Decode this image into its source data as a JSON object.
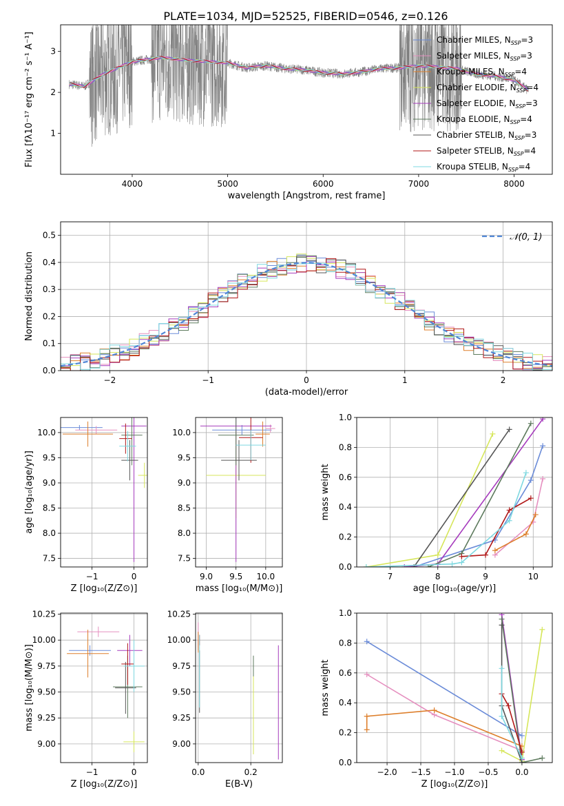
{
  "figure": {
    "title": "PLATE=1034, MJD=52525, FIBERID=0546, z=0.126"
  },
  "palette": [
    "#6a8bd8",
    "#e58fbf",
    "#dd7e2a",
    "#d6e65a",
    "#a63bbd",
    "#5d7a5d",
    "#555555",
    "#b01616",
    "#7dd8e0"
  ],
  "legend_entries": [
    {
      "name": "Chabrier MILES, N",
      "sub": "SSP",
      "eq": "=3",
      "color": "#6a8bd8"
    },
    {
      "name": "Salpeter MILES, N",
      "sub": "SSP",
      "eq": "=3",
      "color": "#e58fbf"
    },
    {
      "name": "Kroupa MILES, N",
      "sub": "SSP",
      "eq": "=4",
      "color": "#dd7e2a"
    },
    {
      "name": "Chabrier ELODIE, N",
      "sub": "SSP",
      "eq": "=4",
      "color": "#d6e65a"
    },
    {
      "name": "Salpeter ELODIE, N",
      "sub": "SSP",
      "eq": "=3",
      "color": "#a63bbd"
    },
    {
      "name": "Kroupa ELODIE, N",
      "sub": "SSP",
      "eq": "=4",
      "color": "#5d7a5d"
    },
    {
      "name": "Chabrier STELIB, N",
      "sub": "SSP",
      "eq": "=3",
      "color": "#555555"
    },
    {
      "name": "Salpeter STELIB, N",
      "sub": "SSP",
      "eq": "=4",
      "color": "#b01616"
    },
    {
      "name": "Kroupa STELIB, N",
      "sub": "SSP",
      "eq": "=4",
      "color": "#7dd8e0"
    }
  ],
  "chart_data": [
    {
      "id": "spectrum",
      "type": "line",
      "xlabel": "wavelength [Angstrom, rest frame]",
      "ylabel": "Flux [fλ10⁻¹⁷ erg cm⁻² s⁻¹ A⁻¹]",
      "xlim": [
        3250,
        8400
      ],
      "ylim": [
        0,
        3.65
      ],
      "xticks": [
        4000,
        5000,
        6000,
        7000,
        8000
      ],
      "yticks": [
        1,
        2,
        3
      ],
      "data_range": [
        3340,
        8150
      ],
      "continuum": {
        "x": [
          3340,
          3500,
          3700,
          4000,
          4300,
          4600,
          5000,
          5200,
          5400,
          5600,
          5800,
          6000,
          6200,
          6400,
          6600,
          6800,
          7000,
          7200,
          7400,
          7600,
          7800,
          8000,
          8150
        ],
        "y": [
          2.2,
          2.15,
          2.45,
          2.75,
          2.85,
          2.78,
          2.72,
          2.6,
          2.65,
          2.58,
          2.55,
          2.48,
          2.45,
          2.5,
          2.58,
          2.6,
          2.65,
          2.62,
          2.58,
          2.45,
          2.4,
          2.3,
          2.05
        ]
      },
      "grid": false
    },
    {
      "id": "residuals",
      "type": "step",
      "xlabel": "(data-model)/error",
      "ylabel": "Normed distribution",
      "xlim": [
        -2.5,
        2.5
      ],
      "ylim": [
        0,
        0.55
      ],
      "xticks": [
        -2,
        -1,
        0,
        1,
        2
      ],
      "yticks": [
        0.0,
        0.1,
        0.2,
        0.3,
        0.4,
        0.5
      ],
      "bin_width": 0.1,
      "reference": {
        "name": "𝒩(0, 1)",
        "color": "#4f86d6"
      },
      "grid": true
    },
    {
      "id": "age-vs-z",
      "type": "errorbar",
      "xlabel": "Z [log₁₀(Z/Z⊙)]",
      "ylabel": "age  [log₁₀(age/yr)]",
      "xlim": [
        -1.75,
        0.32
      ],
      "ylim": [
        7.33,
        10.3
      ],
      "xticks": [
        -1,
        0
      ],
      "yticks": [
        7.5,
        8.0,
        8.5,
        9.0,
        9.5,
        10.0
      ],
      "points": [
        {
          "x": -1.3,
          "y": 10.1,
          "xerr": 0.55,
          "yerr": 0.05,
          "c": 0
        },
        {
          "x": -0.9,
          "y": 10.05,
          "xerr": 0.5,
          "yerr": 0.08,
          "c": 1
        },
        {
          "x": -1.1,
          "y": 9.97,
          "xerr": 0.6,
          "yerr": 0.25,
          "c": 2
        },
        {
          "x": 0.25,
          "y": 9.15,
          "xerr": 0.15,
          "yerr": 0.25,
          "c": 3
        },
        {
          "x": 0.0,
          "y": 10.13,
          "xerr": 0.3,
          "yerr": 2.7,
          "c": 4
        },
        {
          "x": -0.05,
          "y": 9.95,
          "xerr": 0.25,
          "yerr": 0.6,
          "c": 5
        },
        {
          "x": -0.1,
          "y": 9.45,
          "xerr": 0.2,
          "yerr": 0.4,
          "c": 6
        },
        {
          "x": -0.2,
          "y": 9.88,
          "xerr": 0.15,
          "yerr": 0.3,
          "c": 7
        },
        {
          "x": -0.15,
          "y": 9.73,
          "xerr": 0.2,
          "yerr": 0.3,
          "c": 8
        }
      ],
      "grid": true
    },
    {
      "id": "age-vs-mass",
      "type": "errorbar",
      "xlabel": "mass [log₁₀(M/M⊙)]",
      "ylabel": "",
      "xlim": [
        8.82,
        10.28
      ],
      "ylim": [
        7.33,
        10.3
      ],
      "xticks": [
        9.0,
        9.5,
        10.0
      ],
      "yticks": [
        7.5,
        8.0,
        8.5,
        9.0,
        9.5,
        10.0
      ],
      "points": [
        {
          "x": 9.6,
          "y": 10.05,
          "xerr": 0.5,
          "yerr": 0.1,
          "c": 0
        },
        {
          "x": 10.08,
          "y": 10.08,
          "xerr": 0.08,
          "yerr": 0.08,
          "c": 1
        },
        {
          "x": 9.95,
          "y": 9.97,
          "xerr": 0.12,
          "yerr": 0.25,
          "c": 2
        },
        {
          "x": 9.5,
          "y": 9.15,
          "xerr": 0.5,
          "yerr": 0.85,
          "c": 3
        },
        {
          "x": 9.5,
          "y": 10.13,
          "xerr": 0.6,
          "yerr": 2.7,
          "c": 4
        },
        {
          "x": 9.5,
          "y": 9.95,
          "xerr": 0.3,
          "yerr": 0.6,
          "c": 5
        },
        {
          "x": 9.55,
          "y": 9.45,
          "xerr": 0.3,
          "yerr": 0.4,
          "c": 6
        },
        {
          "x": 9.75,
          "y": 9.9,
          "xerr": 0.2,
          "yerr": 0.5,
          "c": 7
        },
        {
          "x": 9.75,
          "y": 9.75,
          "xerr": 0.25,
          "yerr": 0.3,
          "c": 8
        }
      ],
      "grid": true
    },
    {
      "id": "weight-vs-age",
      "type": "line",
      "xlabel": "age  [log₁₀(age/yr)]",
      "ylabel": "mass weight",
      "xlim": [
        6.3,
        10.4
      ],
      "ylim": [
        0,
        1
      ],
      "xticks": [
        7,
        8,
        9,
        10
      ],
      "yticks": [
        0.0,
        0.2,
        0.4,
        0.6,
        0.8,
        1.0
      ],
      "series": [
        {
          "c": 0,
          "x": [
            7.5,
            9.2,
            9.95,
            10.2
          ],
          "y": [
            0.0,
            0.18,
            0.58,
            0.81
          ]
        },
        {
          "c": 1,
          "x": [
            9.2,
            10.0,
            10.2
          ],
          "y": [
            0.08,
            0.3,
            0.59
          ]
        },
        {
          "c": 2,
          "x": [
            9.2,
            9.85,
            10.05
          ],
          "y": [
            0.11,
            0.22,
            0.35
          ]
        },
        {
          "c": 3,
          "x": [
            6.5,
            8.0,
            9.15
          ],
          "y": [
            0.0,
            0.08,
            0.89
          ]
        },
        {
          "c": 4,
          "x": [
            7.3,
            8.0,
            10.2
          ],
          "y": [
            0.0,
            0.02,
            0.99
          ]
        },
        {
          "c": 5,
          "x": [
            7.8,
            8.5,
            9.95
          ],
          "y": [
            0.0,
            0.09,
            0.96
          ]
        },
        {
          "c": 6,
          "x": [
            7.5,
            9.5
          ],
          "y": [
            0.0,
            0.92
          ]
        },
        {
          "c": 7,
          "x": [
            8.5,
            9.0,
            9.5,
            9.95
          ],
          "y": [
            0.07,
            0.08,
            0.38,
            0.46
          ]
        },
        {
          "c": 8,
          "x": [
            6.5,
            8.3,
            8.5,
            9.5,
            9.85
          ],
          "y": [
            0.0,
            0.02,
            0.03,
            0.31,
            0.63
          ]
        }
      ],
      "grid": true
    },
    {
      "id": "mass-vs-z",
      "type": "errorbar",
      "xlabel": "Z [log₁₀(Z/Z⊙)]",
      "ylabel": "mass [log₁₀(M/M⊙)]",
      "xlim": [
        -1.75,
        0.32
      ],
      "ylim": [
        8.82,
        10.26
      ],
      "xticks": [
        -1,
        0
      ],
      "yticks": [
        9.0,
        9.25,
        9.5,
        9.75,
        10.0,
        10.25
      ],
      "points": [
        {
          "x": -1.05,
          "y": 9.9,
          "xerr": 0.5,
          "yerr": 0.05,
          "c": 0
        },
        {
          "x": -0.85,
          "y": 10.08,
          "xerr": 0.5,
          "yerr": 0.05,
          "c": 1
        },
        {
          "x": -1.1,
          "y": 9.87,
          "xerr": 0.5,
          "yerr": 0.23,
          "c": 2
        },
        {
          "x": 0.0,
          "y": 9.02,
          "xerr": 0.25,
          "yerr": 0.1,
          "c": 3
        },
        {
          "x": -0.1,
          "y": 9.9,
          "xerr": 0.3,
          "yerr": 0.15,
          "c": 4
        },
        {
          "x": -0.15,
          "y": 9.55,
          "xerr": 0.35,
          "yerr": 0.3,
          "c": 5
        },
        {
          "x": -0.2,
          "y": 9.54,
          "xerr": 0.25,
          "yerr": 0.25,
          "c": 6
        },
        {
          "x": -0.15,
          "y": 9.77,
          "xerr": 0.15,
          "yerr": 0.2,
          "c": 7
        },
        {
          "x": 0.0,
          "y": 9.75,
          "xerr": 0.25,
          "yerr": 0.25,
          "c": 8
        }
      ],
      "grid": true
    },
    {
      "id": "mass-vs-ebv",
      "type": "errorbar",
      "xlabel": "E(B-V)",
      "ylabel": "",
      "xlim": [
        -0.01,
        0.32
      ],
      "ylim": [
        8.82,
        10.26
      ],
      "xticks": [
        0.0,
        0.2
      ],
      "yticks": [
        9.0,
        9.25,
        9.5,
        9.75,
        10.0,
        10.25
      ],
      "points": [
        {
          "x": 0.0,
          "y": 9.95,
          "xerr": 0.0,
          "yerr": 0.05,
          "c": 0
        },
        {
          "x": 0.0,
          "y": 10.05,
          "xerr": 0.0,
          "yerr": 0.12,
          "c": 1
        },
        {
          "x": 0.0,
          "y": 9.98,
          "xerr": 0.0,
          "yerr": 0.1,
          "c": 2
        },
        {
          "x": 0.21,
          "y": 9.35,
          "xerr": 0.0,
          "yerr": 0.45,
          "c": 3
        },
        {
          "x": 0.305,
          "y": 9.4,
          "xerr": 0.0,
          "yerr": 0.55,
          "c": 4
        },
        {
          "x": 0.21,
          "y": 9.75,
          "xerr": 0.0,
          "yerr": 0.1,
          "c": 5
        },
        {
          "x": 0.005,
          "y": 9.6,
          "xerr": 0.0,
          "yerr": 0.3,
          "c": 6
        },
        {
          "x": 0.005,
          "y": 10.0,
          "xerr": 0.0,
          "yerr": 0.05,
          "c": 7
        },
        {
          "x": 0.005,
          "y": 9.7,
          "xerr": 0.0,
          "yerr": 0.35,
          "c": 8
        }
      ],
      "grid": true
    },
    {
      "id": "weight-vs-z",
      "type": "line",
      "xlabel": "Z [log₁₀(Z/Z⊙)]",
      "ylabel": "mass weight",
      "xlim": [
        -2.45,
        0.45
      ],
      "ylim": [
        0,
        1
      ],
      "xticks": [
        -2.0,
        -1.5,
        -1.0,
        -0.5,
        0.0
      ],
      "yticks": [
        0.0,
        0.2,
        0.4,
        0.6,
        0.8,
        1.0
      ],
      "series": [
        {
          "c": 0,
          "x": [
            -2.3,
            0.0
          ],
          "y": [
            0.81,
            0.18
          ]
        },
        {
          "c": 1,
          "x": [
            -2.3,
            -1.3,
            0.0
          ],
          "y": [
            0.59,
            0.32,
            0.08
          ]
        },
        {
          "c": 2,
          "x": [
            -2.3,
            -2.3,
            -1.3,
            0.0
          ],
          "y": [
            0.22,
            0.31,
            0.35,
            0.11
          ]
        },
        {
          "c": 3,
          "x": [
            -0.3,
            0.0,
            0.3
          ],
          "y": [
            0.08,
            0.01,
            0.89
          ]
        },
        {
          "c": 4,
          "x": [
            -0.3,
            0.0
          ],
          "y": [
            0.99,
            0.02
          ]
        },
        {
          "c": 5,
          "x": [
            -0.3,
            0.0,
            0.3
          ],
          "y": [
            0.96,
            0.0,
            0.03
          ]
        },
        {
          "c": 6,
          "x": [
            -0.3,
            -0.3,
            0.0
          ],
          "y": [
            0.92,
            0.38,
            0.0
          ]
        },
        {
          "c": 7,
          "x": [
            -0.3,
            -0.2,
            0.0
          ],
          "y": [
            0.46,
            0.38,
            0.07
          ]
        },
        {
          "c": 8,
          "x": [
            -0.3,
            -0.3,
            0.0
          ],
          "y": [
            0.63,
            0.31,
            0.03
          ]
        }
      ],
      "grid": true
    }
  ]
}
